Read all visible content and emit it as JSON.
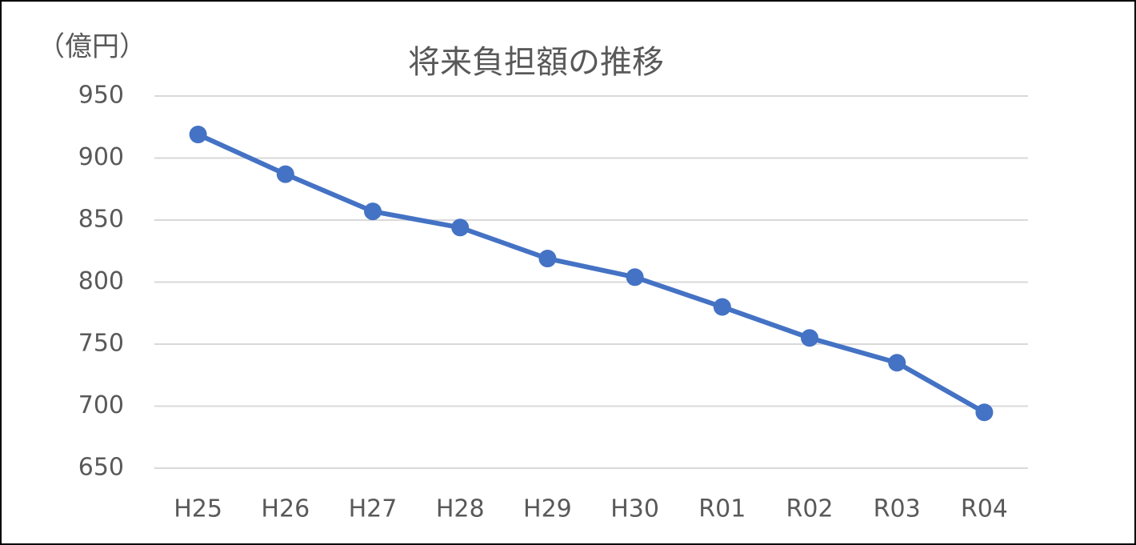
{
  "chart_data": {
    "type": "line",
    "title": "将来負担額の推移",
    "y_axis_label": "（億円）",
    "categories": [
      "H25",
      "H26",
      "H27",
      "H28",
      "H29",
      "H30",
      "R01",
      "R02",
      "R03",
      "R04"
    ],
    "series": [
      {
        "name": "将来負担額",
        "color": "#4472c4",
        "values": [
          919,
          887,
          857,
          844,
          819,
          804,
          780,
          755,
          735,
          695
        ]
      }
    ],
    "ylim": [
      650,
      950
    ],
    "yticks": [
      650,
      700,
      750,
      800,
      850,
      900,
      950
    ],
    "grid": true
  }
}
